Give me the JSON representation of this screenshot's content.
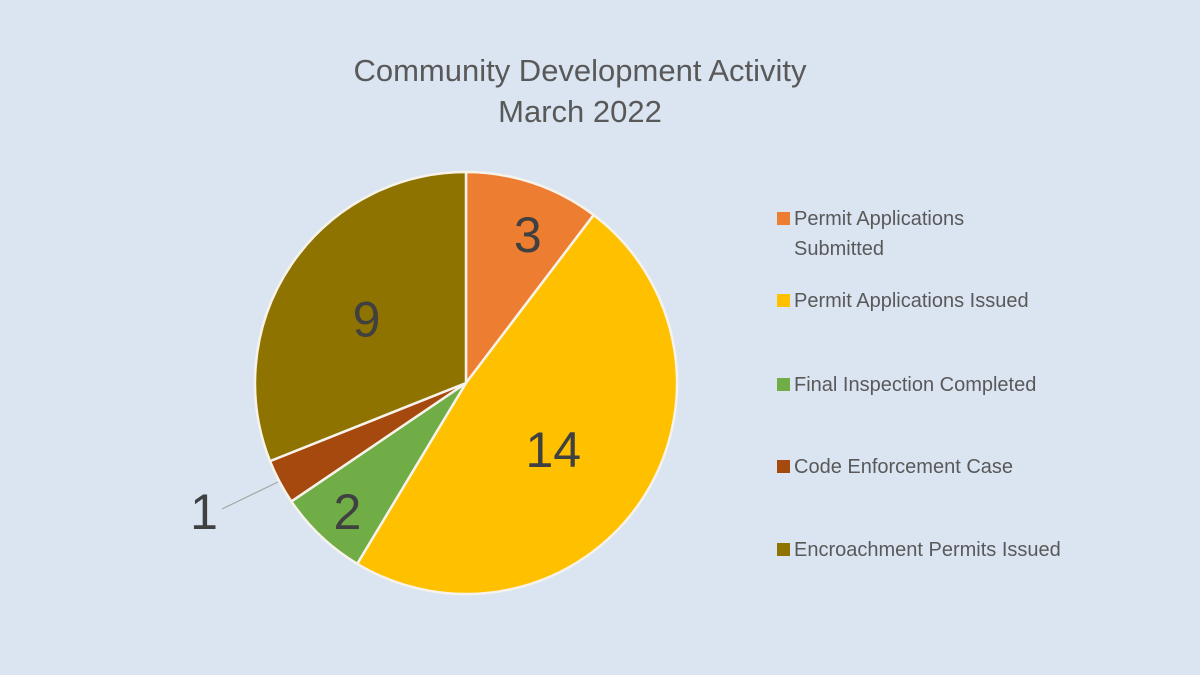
{
  "page": {
    "background": "#DAE5F1"
  },
  "chart_data": {
    "type": "pie",
    "title": "Community Development Activity",
    "subtitle": "March 2022",
    "direction": "clockwise",
    "start_angle_deg": 0,
    "legend_position": "right",
    "grid": false,
    "slices": [
      {
        "label": "Permit Applications Submitted",
        "value": 3,
        "data_label": "3",
        "color": "#ED7D31",
        "label_placement": "inside"
      },
      {
        "label": "Permit Applications Issued",
        "value": 14,
        "data_label": "14",
        "color": "#FFC000",
        "label_placement": "inside"
      },
      {
        "label": "Final Inspection Completed",
        "value": 2,
        "data_label": "2",
        "color": "#70AD47",
        "label_placement": "inside"
      },
      {
        "label": "Code Enforcement Case",
        "value": 1,
        "data_label": "1",
        "color": "#A6490E",
        "label_placement": "outside-leader"
      },
      {
        "label": "Encroachment Permits Issued",
        "value": 9,
        "data_label": "9",
        "color": "#8E7300",
        "label_placement": "inside"
      }
    ],
    "colors": {
      "title_text": "#595959",
      "legend_text": "#595959",
      "data_label_text": "#404040",
      "leader_line": "#A6A6A6",
      "slice_border": "#F7F3EA"
    }
  }
}
